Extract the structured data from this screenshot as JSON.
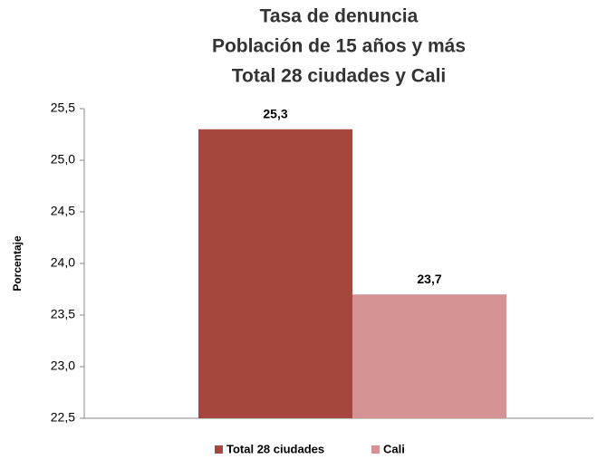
{
  "chart_data": {
    "type": "bar",
    "title": [
      "Tasa de denuncia",
      "Población de 15 años y más",
      "Total 28 ciudades y Cali"
    ],
    "y_label": "Porcentaje",
    "categories": [
      null
    ],
    "series": [
      {
        "name": "Total 28 ciudades",
        "color": "#a5473f",
        "values": [
          25.3
        ],
        "value_labels": [
          "25,3"
        ]
      },
      {
        "name": "Cali",
        "color": "#d49392",
        "values": [
          23.7
        ],
        "value_labels": [
          "23,7"
        ]
      }
    ],
    "ylim": [
      22.5,
      25.5
    ],
    "yticks": [
      {
        "value": 22.5,
        "label": "22,5"
      },
      {
        "value": 23.0,
        "label": "23,0"
      },
      {
        "value": 23.5,
        "label": "23,5"
      },
      {
        "value": 24.0,
        "label": "24,0"
      },
      {
        "value": 24.5,
        "label": "24,5"
      },
      {
        "value": 25.0,
        "label": "25,0"
      },
      {
        "value": 25.5,
        "label": "25,5"
      }
    ],
    "grid": false,
    "legend": "bottom"
  }
}
